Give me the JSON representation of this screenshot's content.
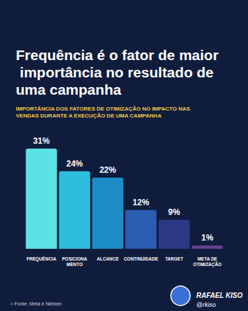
{
  "chart_data": {
    "type": "bar",
    "title": "Frequência é o fator de maior importância no resultado de uma campanha",
    "subtitle": "IMPORTÂNCIA DOS FATORES DE OTIMIZAÇÃO NO IMPACTO NAS VENDAS DURANTE A EXECUÇÃO DE UMA CAMPANHA",
    "categories": [
      "FREQUÊNCIA",
      "POSICIONA\nMENTO",
      "ALCANCE",
      "CONTINUIDADE",
      "TARGET",
      "META DE\nOTIMIZAÇÃO"
    ],
    "values": [
      31,
      24,
      22,
      12,
      9,
      1
    ],
    "value_labels": [
      "31%",
      "24%",
      "22%",
      "12%",
      "9%",
      "1%"
    ],
    "colors": [
      "#5ce1e6",
      "#2ebddc",
      "#1b8cc6",
      "#2a5cb2",
      "#2b3886",
      "#6b3f8e"
    ],
    "ylim": [
      0,
      31
    ],
    "grid": false,
    "data_labels": true,
    "tick_labels": "x",
    "annotations": [
      "> Fonte: Meta e Nielsen",
      "RAFAEL KISO",
      "@rkiso"
    ]
  }
}
